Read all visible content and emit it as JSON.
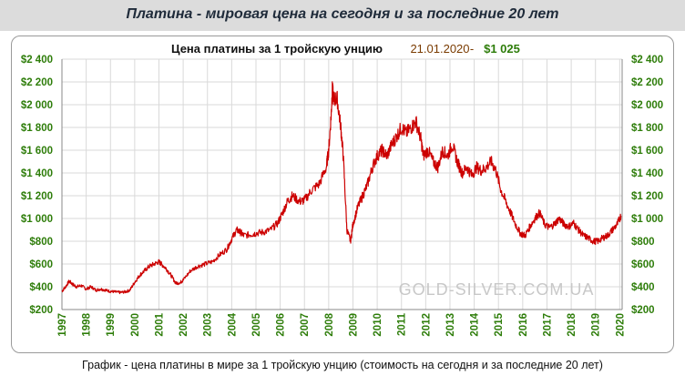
{
  "page": {
    "title": "Платина - мировая цена на сегодня и за последние 20 лет",
    "caption": "График - цена платины в мире за 1 тройскую унцию (стоимость на сегодня и за последние 20 лет)"
  },
  "chart_data": {
    "type": "line",
    "title": "Цена платины за 1 тройскую унцию",
    "date_label": "21.01.2020",
    "dash": "-",
    "price_label": "$1 025",
    "watermark": "GOLD-SILVER.COM.UA",
    "xlabel": "",
    "ylabel": "",
    "ylim": [
      200,
      2400
    ],
    "xlim": [
      1997,
      2020.1
    ],
    "y_ticks": [
      "$2 400",
      "$2 200",
      "$2 000",
      "$1 800",
      "$1 600",
      "$1 400",
      "$1 200",
      "$1 000",
      "$800",
      "$600",
      "$400",
      "$200"
    ],
    "x_ticks": [
      "1997",
      "1998",
      "1999",
      "2000",
      "2001",
      "2002",
      "2003",
      "2004",
      "2005",
      "2006",
      "2007",
      "2008",
      "2009",
      "2010",
      "2011",
      "2012",
      "2013",
      "2014",
      "2015",
      "2016",
      "2017",
      "2018",
      "2019",
      "2020"
    ],
    "grid": true,
    "colors": {
      "line": "#cc0000",
      "axis_labels": "#2e7d0a",
      "title": "#111111",
      "date": "#7a3b00",
      "price": "#2e7d0a",
      "grid": "#d9d9d9"
    },
    "series": [
      {
        "x": [
          1997.0,
          1997.15,
          1997.3,
          1997.45,
          1997.6,
          1997.8,
          1998.0,
          1998.2,
          1998.4,
          1998.6,
          1998.8,
          1999.0,
          1999.2,
          1999.4,
          1999.6,
          1999.8,
          2000.0,
          2000.2,
          2000.4,
          2000.6,
          2000.8,
          2001.0,
          2001.1,
          2001.3,
          2001.5,
          2001.7,
          2001.9,
          2002.0,
          2002.3,
          2002.6,
          2002.9,
          2003.2,
          2003.5,
          2003.8,
          2004.0,
          2004.2,
          2004.35,
          2004.5,
          2004.8,
          2005.0,
          2005.3,
          2005.6,
          2005.9,
          2006.1,
          2006.3,
          2006.5,
          2006.8,
          2007.0,
          2007.3,
          2007.6,
          2007.9,
          2008.0,
          2008.1,
          2008.15,
          2008.2,
          2008.35,
          2008.5,
          2008.6,
          2008.75,
          2008.9,
          2009.0,
          2009.2,
          2009.4,
          2009.6,
          2009.8,
          2010.0,
          2010.2,
          2010.4,
          2010.6,
          2010.8,
          2011.0,
          2011.2,
          2011.4,
          2011.6,
          2011.8,
          2011.9,
          2012.1,
          2012.3,
          2012.5,
          2012.7,
          2012.9,
          2013.1,
          2013.3,
          2013.5,
          2013.7,
          2013.9,
          2014.1,
          2014.3,
          2014.5,
          2014.7,
          2014.9,
          2015.1,
          2015.3,
          2015.5,
          2015.7,
          2015.9,
          2016.1,
          2016.3,
          2016.5,
          2016.7,
          2016.9,
          2017.1,
          2017.3,
          2017.5,
          2017.7,
          2017.9,
          2018.1,
          2018.3,
          2018.5,
          2018.7,
          2018.9,
          2019.1,
          2019.3,
          2019.5,
          2019.7,
          2019.9,
          2020.05
        ],
        "y": [
          360,
          400,
          450,
          420,
          400,
          410,
          380,
          400,
          370,
          380,
          370,
          360,
          355,
          350,
          355,
          370,
          440,
          500,
          540,
          580,
          600,
          620,
          600,
          560,
          500,
          430,
          440,
          460,
          540,
          580,
          600,
          620,
          680,
          730,
          820,
          900,
          880,
          850,
          860,
          870,
          880,
          900,
          960,
          1050,
          1150,
          1200,
          1150,
          1160,
          1250,
          1300,
          1450,
          1600,
          1900,
          2150,
          2050,
          2050,
          1800,
          1550,
          900,
          800,
          950,
          1100,
          1200,
          1300,
          1450,
          1550,
          1600,
          1550,
          1650,
          1720,
          1800,
          1750,
          1800,
          1850,
          1700,
          1550,
          1600,
          1500,
          1450,
          1600,
          1550,
          1650,
          1500,
          1400,
          1450,
          1380,
          1450,
          1420,
          1450,
          1500,
          1420,
          1250,
          1150,
          1050,
          950,
          870,
          850,
          930,
          1000,
          1050,
          950,
          920,
          950,
          1000,
          950,
          930,
          960,
          900,
          850,
          830,
          800,
          800,
          830,
          850,
          900,
          950,
          1025
        ]
      }
    ]
  }
}
